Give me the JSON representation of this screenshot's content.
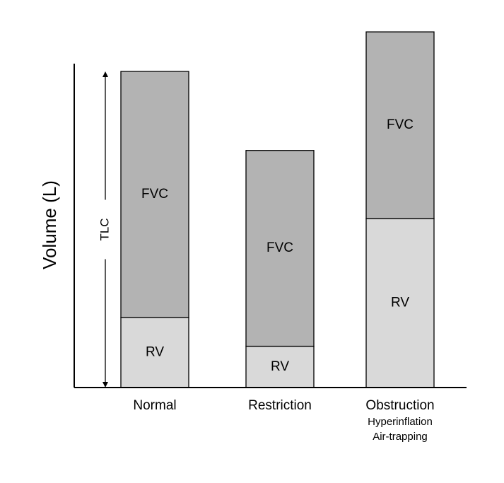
{
  "chart_data": {
    "type": "bar",
    "stacked": true,
    "ylabel": "Volume (L)",
    "xlabel": "",
    "ylim": [
      0,
      100
    ],
    "grid": false,
    "categories": [
      "Normal",
      "Restriction",
      "Obstruction"
    ],
    "category_sublabels": [
      [],
      [],
      [
        "Hyperinflation",
        "Air-trapping"
      ]
    ],
    "series": [
      {
        "name": "RV",
        "values": [
          19.5,
          11.5,
          47
        ],
        "color": "#d9d9d9"
      },
      {
        "name": "FVC",
        "values": [
          68.5,
          54.5,
          52
        ],
        "color": "#b3b3b3"
      }
    ],
    "annotation": {
      "label": "TLC",
      "from": 0,
      "to": 88
    }
  }
}
